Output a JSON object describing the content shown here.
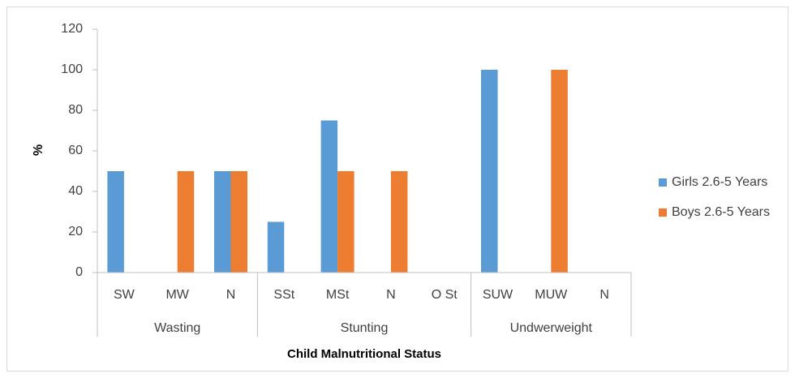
{
  "chart_data": {
    "type": "bar",
    "x_label": "Child Malnutritional Status",
    "y_label": "%",
    "groups": [
      {
        "name": "Wasting",
        "categories": [
          "SW",
          "MW",
          "N"
        ]
      },
      {
        "name": "Stunting",
        "categories": [
          "SSt",
          "MSt",
          "N",
          "O St"
        ]
      },
      {
        "name": "Undwerweight",
        "categories": [
          "SUW",
          "MUW",
          "N"
        ]
      }
    ],
    "series": [
      {
        "name": "Girls 2.6-5 Years",
        "color": "#5b9bd5",
        "values": [
          50,
          0,
          50,
          25,
          75,
          0,
          0,
          100,
          0,
          0
        ]
      },
      {
        "name": "Boys 2.6-5 Years",
        "color": "#ed7d31",
        "values": [
          0,
          50,
          50,
          0,
          50,
          50,
          0,
          0,
          100,
          0
        ]
      }
    ],
    "ylim": [
      0,
      120
    ],
    "yticks": [
      0,
      20,
      40,
      60,
      80,
      100,
      120
    ],
    "grid": false,
    "legend": "right"
  }
}
